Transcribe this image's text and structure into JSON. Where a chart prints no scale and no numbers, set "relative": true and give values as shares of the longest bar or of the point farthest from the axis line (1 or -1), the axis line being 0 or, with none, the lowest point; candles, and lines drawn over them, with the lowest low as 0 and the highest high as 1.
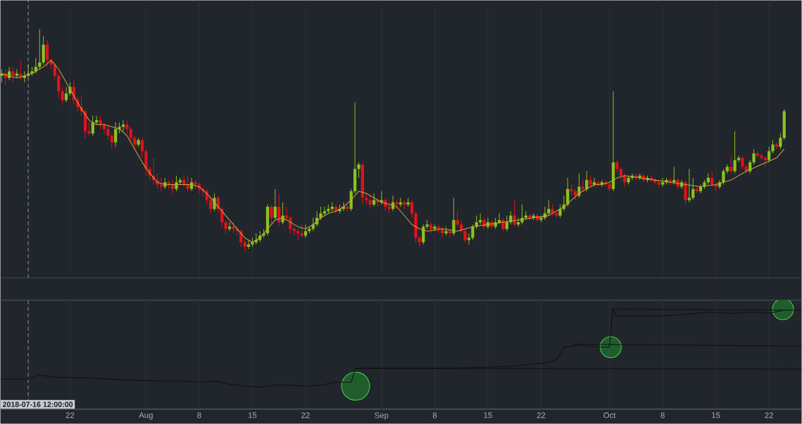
{
  "chart_data": [
    {
      "type": "candlestick",
      "relative": true,
      "grid": "x",
      "tick_labels": false,
      "xlim": [
        "2018-07-12T20:00",
        "2018-10-26T07:00"
      ],
      "xticks": [
        {
          "value": "2018-07-22",
          "label": null
        },
        {
          "value": "2018-08-01",
          "label": null
        },
        {
          "value": "2018-08-08",
          "label": null
        },
        {
          "value": "2018-08-15",
          "label": null
        },
        {
          "value": "2018-08-22",
          "label": null
        },
        {
          "value": "2018-09-01",
          "label": null
        },
        {
          "value": "2018-09-08",
          "label": null
        },
        {
          "value": "2018-09-15",
          "label": null
        },
        {
          "value": "2018-09-22",
          "label": null
        },
        {
          "value": "2018-10-01",
          "label": null
        },
        {
          "value": "2018-10-08",
          "label": null
        },
        {
          "value": "2018-10-15",
          "label": null
        },
        {
          "value": "2018-10-22",
          "label": null
        }
      ],
      "ref_lines": [
        {
          "axis": "x",
          "value": "2018-07-16T12:00",
          "line_style": "dashed",
          "color": "#8a8e95"
        }
      ],
      "x": [
        "2018-07-13T00:00",
        "2018-07-13T12:00",
        "2018-07-14T00:00",
        "2018-07-14T12:00",
        "2018-07-15T00:00",
        "2018-07-15T12:00",
        "2018-07-16T00:00",
        "2018-07-16T12:00",
        "2018-07-17T00:00",
        "2018-07-17T12:00",
        "2018-07-18T00:00",
        "2018-07-18T12:00",
        "2018-07-19T00:00",
        "2018-07-19T12:00",
        "2018-07-20T00:00",
        "2018-07-20T12:00",
        "2018-07-21T00:00",
        "2018-07-21T12:00",
        "2018-07-22T00:00",
        "2018-07-22T12:00",
        "2018-07-23T00:00",
        "2018-07-23T12:00",
        "2018-07-24T00:00",
        "2018-07-24T12:00",
        "2018-07-25T00:00",
        "2018-07-25T12:00",
        "2018-07-26T00:00",
        "2018-07-26T12:00",
        "2018-07-27T00:00",
        "2018-07-27T12:00",
        "2018-07-28T00:00",
        "2018-07-28T12:00",
        "2018-07-29T00:00",
        "2018-07-29T12:00",
        "2018-07-30T00:00",
        "2018-07-30T12:00",
        "2018-07-31T00:00",
        "2018-07-31T12:00",
        "2018-08-01T00:00",
        "2018-08-01T12:00",
        "2018-08-02T00:00",
        "2018-08-02T12:00",
        "2018-08-03T00:00",
        "2018-08-03T12:00",
        "2018-08-04T00:00",
        "2018-08-04T12:00",
        "2018-08-05T00:00",
        "2018-08-05T12:00",
        "2018-08-06T00:00",
        "2018-08-06T12:00",
        "2018-08-07T00:00",
        "2018-08-07T12:00",
        "2018-08-08T00:00",
        "2018-08-08T12:00",
        "2018-08-09T00:00",
        "2018-08-09T12:00",
        "2018-08-10T00:00",
        "2018-08-10T12:00",
        "2018-08-11T00:00",
        "2018-08-11T12:00",
        "2018-08-12T00:00",
        "2018-08-12T12:00",
        "2018-08-13T00:00",
        "2018-08-13T12:00",
        "2018-08-14T00:00",
        "2018-08-14T12:00",
        "2018-08-15T00:00",
        "2018-08-15T12:00",
        "2018-08-16T00:00",
        "2018-08-16T12:00",
        "2018-08-17T00:00",
        "2018-08-17T12:00",
        "2018-08-18T00:00",
        "2018-08-18T12:00",
        "2018-08-19T00:00",
        "2018-08-19T12:00",
        "2018-08-20T00:00",
        "2018-08-20T12:00",
        "2018-08-21T00:00",
        "2018-08-21T12:00",
        "2018-08-22T00:00",
        "2018-08-22T12:00",
        "2018-08-23T00:00",
        "2018-08-23T12:00",
        "2018-08-24T00:00",
        "2018-08-24T12:00",
        "2018-08-25T00:00",
        "2018-08-25T12:00",
        "2018-08-26T00:00",
        "2018-08-26T12:00",
        "2018-08-27T00:00",
        "2018-08-27T12:00",
        "2018-08-28T00:00",
        "2018-08-28T12:00",
        "2018-08-29T00:00",
        "2018-08-29T12:00",
        "2018-08-30T00:00",
        "2018-08-30T12:00",
        "2018-08-31T00:00",
        "2018-08-31T12:00",
        "2018-09-01T00:00",
        "2018-09-01T12:00",
        "2018-09-02T00:00",
        "2018-09-02T12:00",
        "2018-09-03T00:00",
        "2018-09-03T12:00",
        "2018-09-04T00:00",
        "2018-09-04T12:00",
        "2018-09-05T00:00",
        "2018-09-05T12:00",
        "2018-09-06T00:00",
        "2018-09-06T12:00",
        "2018-09-07T00:00",
        "2018-09-07T12:00",
        "2018-09-08T00:00",
        "2018-09-08T12:00",
        "2018-09-09T00:00",
        "2018-09-09T12:00",
        "2018-09-10T00:00",
        "2018-09-10T12:00",
        "2018-09-11T00:00",
        "2018-09-11T12:00",
        "2018-09-12T00:00",
        "2018-09-12T12:00",
        "2018-09-13T00:00",
        "2018-09-13T12:00",
        "2018-09-14T00:00",
        "2018-09-14T12:00",
        "2018-09-15T00:00",
        "2018-09-15T12:00",
        "2018-09-16T00:00",
        "2018-09-16T12:00",
        "2018-09-17T00:00",
        "2018-09-17T12:00",
        "2018-09-18T00:00",
        "2018-09-18T12:00",
        "2018-09-19T00:00",
        "2018-09-19T12:00",
        "2018-09-20T00:00",
        "2018-09-20T12:00",
        "2018-09-21T00:00",
        "2018-09-21T12:00",
        "2018-09-22T00:00",
        "2018-09-22T12:00",
        "2018-09-23T00:00",
        "2018-09-23T12:00",
        "2018-09-24T00:00",
        "2018-09-24T12:00",
        "2018-09-25T00:00",
        "2018-09-25T12:00",
        "2018-09-26T00:00",
        "2018-09-26T12:00",
        "2018-09-27T00:00",
        "2018-09-27T12:00",
        "2018-09-28T00:00",
        "2018-09-28T12:00",
        "2018-09-29T00:00",
        "2018-09-29T12:00",
        "2018-09-30T00:00",
        "2018-09-30T12:00",
        "2018-10-01T00:00",
        "2018-10-01T12:00",
        "2018-10-02T00:00",
        "2018-10-02T12:00",
        "2018-10-03T00:00",
        "2018-10-03T12:00",
        "2018-10-04T00:00",
        "2018-10-04T12:00",
        "2018-10-05T00:00",
        "2018-10-05T12:00",
        "2018-10-06T00:00",
        "2018-10-06T12:00",
        "2018-10-07T00:00",
        "2018-10-07T12:00",
        "2018-10-08T00:00",
        "2018-10-08T12:00",
        "2018-10-09T00:00",
        "2018-10-09T12:00",
        "2018-10-10T00:00",
        "2018-10-10T12:00",
        "2018-10-11T00:00",
        "2018-10-11T12:00",
        "2018-10-12T00:00",
        "2018-10-12T12:00",
        "2018-10-13T00:00",
        "2018-10-13T12:00",
        "2018-10-14T00:00",
        "2018-10-14T12:00",
        "2018-10-15T00:00",
        "2018-10-15T12:00",
        "2018-10-16T00:00",
        "2018-10-16T12:00",
        "2018-10-17T00:00",
        "2018-10-17T12:00",
        "2018-10-18T00:00",
        "2018-10-18T12:00",
        "2018-10-19T00:00",
        "2018-10-19T12:00",
        "2018-10-20T00:00",
        "2018-10-20T12:00",
        "2018-10-21T00:00",
        "2018-10-21T12:00",
        "2018-10-22T00:00",
        "2018-10-22T12:00",
        "2018-10-23T00:00",
        "2018-10-23T12:00",
        "2018-10-24T00:00"
      ],
      "ohlc": [
        [
          0.79,
          0.82,
          0.76,
          0.8
        ],
        [
          0.8,
          0.82,
          0.75,
          0.78
        ],
        [
          0.78,
          0.83,
          0.77,
          0.81
        ],
        [
          0.81,
          0.83,
          0.76,
          0.79
        ],
        [
          0.79,
          0.82,
          0.78,
          0.8
        ],
        [
          0.8,
          0.86,
          0.77,
          0.78
        ],
        [
          0.78,
          0.81,
          0.76,
          0.79
        ],
        [
          0.79,
          0.84,
          0.78,
          0.8
        ],
        [
          0.8,
          0.83,
          0.79,
          0.81
        ],
        [
          0.81,
          0.87,
          0.8,
          0.83
        ],
        [
          0.83,
          1.0,
          0.82,
          0.85
        ],
        [
          0.85,
          0.97,
          0.84,
          0.93
        ],
        [
          0.93,
          0.95,
          0.83,
          0.86
        ],
        [
          0.86,
          0.87,
          0.82,
          0.84
        ],
        [
          0.84,
          0.85,
          0.77,
          0.79
        ],
        [
          0.79,
          0.8,
          0.69,
          0.72
        ],
        [
          0.72,
          0.74,
          0.66,
          0.68
        ],
        [
          0.68,
          0.74,
          0.67,
          0.71
        ],
        [
          0.71,
          0.76,
          0.7,
          0.74
        ],
        [
          0.74,
          0.77,
          0.66,
          0.68
        ],
        [
          0.68,
          0.7,
          0.63,
          0.65
        ],
        [
          0.65,
          0.7,
          0.61,
          0.63
        ],
        [
          0.63,
          0.64,
          0.51,
          0.54
        ],
        [
          0.54,
          0.58,
          0.52,
          0.53
        ],
        [
          0.53,
          0.61,
          0.52,
          0.58
        ],
        [
          0.58,
          0.61,
          0.57,
          0.59
        ],
        [
          0.59,
          0.61,
          0.55,
          0.57
        ],
        [
          0.57,
          0.58,
          0.53,
          0.55
        ],
        [
          0.55,
          0.57,
          0.5,
          0.52
        ],
        [
          0.52,
          0.53,
          0.46,
          0.49
        ],
        [
          0.49,
          0.58,
          0.47,
          0.55
        ],
        [
          0.55,
          0.58,
          0.53,
          0.56
        ],
        [
          0.56,
          0.59,
          0.54,
          0.57
        ],
        [
          0.57,
          0.59,
          0.53,
          0.55
        ],
        [
          0.55,
          0.56,
          0.49,
          0.51
        ],
        [
          0.51,
          0.52,
          0.46,
          0.48
        ],
        [
          0.48,
          0.51,
          0.47,
          0.5
        ],
        [
          0.5,
          0.51,
          0.42,
          0.45
        ],
        [
          0.45,
          0.46,
          0.34,
          0.37
        ],
        [
          0.37,
          0.38,
          0.32,
          0.34
        ],
        [
          0.34,
          0.42,
          0.3,
          0.32
        ],
        [
          0.32,
          0.35,
          0.28,
          0.3
        ],
        [
          0.3,
          0.33,
          0.27,
          0.29
        ],
        [
          0.29,
          0.33,
          0.28,
          0.31
        ],
        [
          0.31,
          0.32,
          0.28,
          0.3
        ],
        [
          0.3,
          0.32,
          0.26,
          0.28
        ],
        [
          0.28,
          0.34,
          0.27,
          0.31
        ],
        [
          0.31,
          0.33,
          0.3,
          0.32
        ],
        [
          0.32,
          0.34,
          0.29,
          0.3
        ],
        [
          0.3,
          0.34,
          0.27,
          0.28
        ],
        [
          0.28,
          0.33,
          0.27,
          0.31
        ],
        [
          0.31,
          0.32,
          0.28,
          0.3
        ],
        [
          0.3,
          0.31,
          0.26,
          0.28
        ],
        [
          0.28,
          0.29,
          0.25,
          0.27
        ],
        [
          0.27,
          0.28,
          0.21,
          0.23
        ],
        [
          0.23,
          0.25,
          0.17,
          0.19
        ],
        [
          0.19,
          0.26,
          0.18,
          0.24
        ],
        [
          0.24,
          0.25,
          0.17,
          0.19
        ],
        [
          0.19,
          0.2,
          0.11,
          0.13
        ],
        [
          0.13,
          0.14,
          0.08,
          0.1
        ],
        [
          0.1,
          0.13,
          0.09,
          0.11
        ],
        [
          0.11,
          0.13,
          0.08,
          0.1
        ],
        [
          0.1,
          0.11,
          0.07,
          0.09
        ],
        [
          0.09,
          0.1,
          0.02,
          0.04
        ],
        [
          0.04,
          0.05,
          0.0,
          0.02
        ],
        [
          0.02,
          0.05,
          0.01,
          0.03
        ],
        [
          0.03,
          0.06,
          0.02,
          0.04
        ],
        [
          0.04,
          0.08,
          0.03,
          0.05
        ],
        [
          0.05,
          0.09,
          0.04,
          0.07
        ],
        [
          0.07,
          0.1,
          0.06,
          0.08
        ],
        [
          0.08,
          0.21,
          0.07,
          0.2
        ],
        [
          0.2,
          0.21,
          0.12,
          0.15
        ],
        [
          0.15,
          0.28,
          0.14,
          0.2
        ],
        [
          0.2,
          0.26,
          0.11,
          0.13
        ],
        [
          0.13,
          0.22,
          0.12,
          0.16
        ],
        [
          0.16,
          0.2,
          0.14,
          0.15
        ],
        [
          0.15,
          0.16,
          0.08,
          0.1
        ],
        [
          0.1,
          0.11,
          0.07,
          0.09
        ],
        [
          0.09,
          0.1,
          0.05,
          0.08
        ],
        [
          0.08,
          0.12,
          0.06,
          0.07
        ],
        [
          0.07,
          0.12,
          0.06,
          0.09
        ],
        [
          0.09,
          0.11,
          0.08,
          0.1
        ],
        [
          0.1,
          0.15,
          0.09,
          0.12
        ],
        [
          0.12,
          0.18,
          0.11,
          0.15
        ],
        [
          0.15,
          0.2,
          0.14,
          0.17
        ],
        [
          0.17,
          0.2,
          0.16,
          0.18
        ],
        [
          0.18,
          0.21,
          0.17,
          0.19
        ],
        [
          0.19,
          0.22,
          0.18,
          0.2
        ],
        [
          0.2,
          0.21,
          0.17,
          0.18
        ],
        [
          0.18,
          0.21,
          0.17,
          0.19
        ],
        [
          0.19,
          0.22,
          0.18,
          0.2
        ],
        [
          0.2,
          0.21,
          0.18,
          0.19
        ],
        [
          0.19,
          0.28,
          0.18,
          0.27
        ],
        [
          0.27,
          0.67,
          0.26,
          0.37
        ],
        [
          0.37,
          0.4,
          0.33,
          0.39
        ],
        [
          0.39,
          0.4,
          0.21,
          0.24
        ],
        [
          0.24,
          0.26,
          0.21,
          0.23
        ],
        [
          0.23,
          0.25,
          0.19,
          0.21
        ],
        [
          0.21,
          0.26,
          0.2,
          0.23
        ],
        [
          0.23,
          0.24,
          0.2,
          0.22
        ],
        [
          0.22,
          0.27,
          0.21,
          0.23
        ],
        [
          0.23,
          0.24,
          0.18,
          0.2
        ],
        [
          0.2,
          0.22,
          0.17,
          0.19
        ],
        [
          0.19,
          0.25,
          0.18,
          0.22
        ],
        [
          0.22,
          0.23,
          0.19,
          0.21
        ],
        [
          0.21,
          0.24,
          0.2,
          0.22
        ],
        [
          0.22,
          0.23,
          0.19,
          0.21
        ],
        [
          0.21,
          0.24,
          0.2,
          0.22
        ],
        [
          0.22,
          0.23,
          0.15,
          0.17
        ],
        [
          0.17,
          0.18,
          0.04,
          0.06
        ],
        [
          0.06,
          0.07,
          0.02,
          0.04
        ],
        [
          0.04,
          0.12,
          0.03,
          0.11
        ],
        [
          0.11,
          0.14,
          0.1,
          0.12
        ],
        [
          0.12,
          0.13,
          0.08,
          0.1
        ],
        [
          0.1,
          0.12,
          0.09,
          0.11
        ],
        [
          0.11,
          0.12,
          0.08,
          0.1
        ],
        [
          0.1,
          0.11,
          0.06,
          0.08
        ],
        [
          0.08,
          0.11,
          0.07,
          0.09
        ],
        [
          0.09,
          0.1,
          0.06,
          0.08
        ],
        [
          0.08,
          0.24,
          0.07,
          0.14
        ],
        [
          0.14,
          0.18,
          0.11,
          0.12
        ],
        [
          0.12,
          0.14,
          0.08,
          0.09
        ],
        [
          0.09,
          0.1,
          0.04,
          0.05
        ],
        [
          0.05,
          0.08,
          0.03,
          0.06
        ],
        [
          0.06,
          0.12,
          0.05,
          0.11
        ],
        [
          0.11,
          0.16,
          0.1,
          0.13
        ],
        [
          0.13,
          0.17,
          0.12,
          0.14
        ],
        [
          0.14,
          0.15,
          0.1,
          0.11
        ],
        [
          0.11,
          0.15,
          0.1,
          0.13
        ],
        [
          0.13,
          0.14,
          0.1,
          0.11
        ],
        [
          0.11,
          0.15,
          0.1,
          0.13
        ],
        [
          0.13,
          0.17,
          0.12,
          0.14
        ],
        [
          0.14,
          0.15,
          0.09,
          0.1
        ],
        [
          0.1,
          0.16,
          0.09,
          0.13
        ],
        [
          0.13,
          0.18,
          0.12,
          0.16
        ],
        [
          0.16,
          0.23,
          0.11,
          0.12
        ],
        [
          0.12,
          0.15,
          0.11,
          0.13
        ],
        [
          0.13,
          0.21,
          0.12,
          0.15
        ],
        [
          0.15,
          0.18,
          0.14,
          0.16
        ],
        [
          0.16,
          0.17,
          0.14,
          0.15
        ],
        [
          0.15,
          0.17,
          0.14,
          0.16
        ],
        [
          0.16,
          0.17,
          0.13,
          0.14
        ],
        [
          0.14,
          0.16,
          0.13,
          0.15
        ],
        [
          0.15,
          0.2,
          0.14,
          0.17
        ],
        [
          0.17,
          0.23,
          0.16,
          0.19
        ],
        [
          0.19,
          0.21,
          0.16,
          0.17
        ],
        [
          0.17,
          0.18,
          0.15,
          0.16
        ],
        [
          0.16,
          0.21,
          0.15,
          0.19
        ],
        [
          0.19,
          0.25,
          0.18,
          0.21
        ],
        [
          0.21,
          0.33,
          0.2,
          0.28
        ],
        [
          0.28,
          0.3,
          0.25,
          0.27
        ],
        [
          0.27,
          0.28,
          0.23,
          0.25
        ],
        [
          0.25,
          0.35,
          0.24,
          0.29
        ],
        [
          0.29,
          0.32,
          0.27,
          0.28
        ],
        [
          0.28,
          0.36,
          0.27,
          0.32
        ],
        [
          0.32,
          0.34,
          0.29,
          0.3
        ],
        [
          0.3,
          0.33,
          0.29,
          0.31
        ],
        [
          0.31,
          0.32,
          0.29,
          0.3
        ],
        [
          0.3,
          0.32,
          0.29,
          0.31
        ],
        [
          0.31,
          0.32,
          0.29,
          0.3
        ],
        [
          0.3,
          0.31,
          0.27,
          0.28
        ],
        [
          0.28,
          0.72,
          0.27,
          0.4
        ],
        [
          0.4,
          0.41,
          0.35,
          0.37
        ],
        [
          0.37,
          0.38,
          0.32,
          0.34
        ],
        [
          0.34,
          0.35,
          0.29,
          0.31
        ],
        [
          0.31,
          0.34,
          0.3,
          0.33
        ],
        [
          0.33,
          0.35,
          0.32,
          0.34
        ],
        [
          0.34,
          0.35,
          0.32,
          0.33
        ],
        [
          0.33,
          0.35,
          0.32,
          0.34
        ],
        [
          0.34,
          0.35,
          0.31,
          0.32
        ],
        [
          0.32,
          0.34,
          0.31,
          0.33
        ],
        [
          0.33,
          0.34,
          0.31,
          0.32
        ],
        [
          0.32,
          0.33,
          0.3,
          0.31
        ],
        [
          0.31,
          0.32,
          0.29,
          0.3
        ],
        [
          0.3,
          0.33,
          0.29,
          0.31
        ],
        [
          0.31,
          0.33,
          0.3,
          0.32
        ],
        [
          0.32,
          0.33,
          0.3,
          0.31
        ],
        [
          0.31,
          0.38,
          0.3,
          0.32
        ],
        [
          0.32,
          0.33,
          0.28,
          0.29
        ],
        [
          0.29,
          0.32,
          0.28,
          0.31
        ],
        [
          0.31,
          0.32,
          0.21,
          0.23
        ],
        [
          0.23,
          0.37,
          0.22,
          0.24
        ],
        [
          0.24,
          0.33,
          0.23,
          0.28
        ],
        [
          0.28,
          0.29,
          0.26,
          0.27
        ],
        [
          0.27,
          0.3,
          0.26,
          0.29
        ],
        [
          0.29,
          0.32,
          0.28,
          0.31
        ],
        [
          0.31,
          0.35,
          0.3,
          0.33
        ],
        [
          0.33,
          0.36,
          0.29,
          0.3
        ],
        [
          0.3,
          0.31,
          0.27,
          0.29
        ],
        [
          0.29,
          0.32,
          0.28,
          0.31
        ],
        [
          0.31,
          0.37,
          0.3,
          0.36
        ],
        [
          0.36,
          0.39,
          0.35,
          0.38
        ],
        [
          0.38,
          0.43,
          0.35,
          0.36
        ],
        [
          0.36,
          0.54,
          0.35,
          0.41
        ],
        [
          0.41,
          0.43,
          0.4,
          0.42
        ],
        [
          0.42,
          0.43,
          0.37,
          0.38
        ],
        [
          0.38,
          0.39,
          0.35,
          0.36
        ],
        [
          0.36,
          0.41,
          0.35,
          0.4
        ],
        [
          0.4,
          0.46,
          0.39,
          0.44
        ],
        [
          0.44,
          0.45,
          0.42,
          0.43
        ],
        [
          0.43,
          0.44,
          0.41,
          0.42
        ],
        [
          0.42,
          0.43,
          0.38,
          0.41
        ],
        [
          0.41,
          0.47,
          0.4,
          0.45
        ],
        [
          0.45,
          0.5,
          0.44,
          0.48
        ],
        [
          0.48,
          0.49,
          0.46,
          0.47
        ],
        [
          0.47,
          0.53,
          0.46,
          0.51
        ],
        [
          0.51,
          0.64,
          0.5,
          0.63
        ]
      ],
      "colors": [
        "#8cc21e",
        "#e0121c",
        "#8cc21e",
        "#e0121c",
        "#8cc21e",
        "#e0121c",
        "#8cc21e",
        "#8cc21e",
        "#8cc21e",
        "#8cc21e",
        "#8cc21e",
        "#8cc21e",
        "#e0121c",
        "#e0121c",
        "#e0121c",
        "#e0121c",
        "#e0121c",
        "#8cc21e",
        "#8cc21e",
        "#e0121c",
        "#e0121c",
        "#e0121c",
        "#e0121c",
        "#e0121c",
        "#8cc21e",
        "#8cc21e",
        "#e0121c",
        "#e0121c",
        "#e0121c",
        "#e0121c",
        "#8cc21e",
        "#8cc21e",
        "#8cc21e",
        "#e0121c",
        "#e0121c",
        "#e0121c",
        "#8cc21e",
        "#e0121c",
        "#e0121c",
        "#e0121c",
        "#e0121c",
        "#e0121c",
        "#e0121c",
        "#8cc21e",
        "#e0121c",
        "#e0121c",
        "#8cc21e",
        "#8cc21e",
        "#e0121c",
        "#e0121c",
        "#8cc21e",
        "#e0121c",
        "#e0121c",
        "#e0121c",
        "#e0121c",
        "#e0121c",
        "#8cc21e",
        "#e0121c",
        "#e0121c",
        "#e0121c",
        "#8cc21e",
        "#e0121c",
        "#e0121c",
        "#e0121c",
        "#e0121c",
        "#8cc21e",
        "#8cc21e",
        "#8cc21e",
        "#8cc21e",
        "#8cc21e",
        "#8cc21e",
        "#e0121c",
        "#8cc21e",
        "#e0121c",
        "#8cc21e",
        "#e0121c",
        "#e0121c",
        "#e0121c",
        "#e0121c",
        "#e0121c",
        "#8cc21e",
        "#8cc21e",
        "#8cc21e",
        "#8cc21e",
        "#8cc21e",
        "#8cc21e",
        "#8cc21e",
        "#8cc21e",
        "#e0121c",
        "#8cc21e",
        "#8cc21e",
        "#e0121c",
        "#8cc21e",
        "#8cc21e",
        "#8cc21e",
        "#e0121c",
        "#e0121c",
        "#e0121c",
        "#8cc21e",
        "#e0121c",
        "#8cc21e",
        "#e0121c",
        "#e0121c",
        "#8cc21e",
        "#e0121c",
        "#8cc21e",
        "#e0121c",
        "#8cc21e",
        "#e0121c",
        "#e0121c",
        "#e0121c",
        "#8cc21e",
        "#8cc21e",
        "#e0121c",
        "#8cc21e",
        "#e0121c",
        "#e0121c",
        "#8cc21e",
        "#e0121c",
        "#8cc21e",
        "#e0121c",
        "#e0121c",
        "#e0121c",
        "#8cc21e",
        "#8cc21e",
        "#8cc21e",
        "#8cc21e",
        "#e0121c",
        "#8cc21e",
        "#e0121c",
        "#8cc21e",
        "#8cc21e",
        "#e0121c",
        "#8cc21e",
        "#8cc21e",
        "#e0121c",
        "#8cc21e",
        "#8cc21e",
        "#8cc21e",
        "#e0121c",
        "#8cc21e",
        "#e0121c",
        "#8cc21e",
        "#8cc21e",
        "#8cc21e",
        "#e0121c",
        "#e0121c",
        "#8cc21e",
        "#8cc21e",
        "#8cc21e",
        "#e0121c",
        "#e0121c",
        "#8cc21e",
        "#e0121c",
        "#8cc21e",
        "#e0121c",
        "#8cc21e",
        "#e0121c",
        "#8cc21e",
        "#e0121c",
        "#e0121c",
        "#8cc21e",
        "#e0121c",
        "#e0121c",
        "#e0121c",
        "#8cc21e",
        "#8cc21e",
        "#e0121c",
        "#8cc21e",
        "#e0121c",
        "#8cc21e",
        "#e0121c",
        "#e0121c",
        "#e0121c",
        "#8cc21e",
        "#8cc21e",
        "#e0121c",
        "#8cc21e",
        "#e0121c",
        "#8cc21e",
        "#e0121c",
        "#8cc21e",
        "#8cc21e",
        "#e0121c",
        "#8cc21e",
        "#8cc21e",
        "#8cc21e",
        "#e0121c",
        "#e0121c",
        "#8cc21e",
        "#8cc21e",
        "#8cc21e",
        "#e0121c",
        "#8cc21e",
        "#8cc21e",
        "#e0121c",
        "#e0121c",
        "#8cc21e",
        "#8cc21e",
        "#e0121c",
        "#e0121c",
        "#e0121c",
        "#8cc21e",
        "#8cc21e",
        "#e0121c",
        "#8cc21e",
        "#8cc21e"
      ],
      "series": [
        {
          "type": "line",
          "color": "#c9a23b",
          "x": [
            "2018-07-13",
            "2018-07-15",
            "2018-07-17",
            "2018-07-18T12:00",
            "2018-07-19T12:00",
            "2018-07-20T12:00",
            "2018-07-21T12:00",
            "2018-07-22T12:00",
            "2018-07-23T12:00",
            "2018-07-24T12:00",
            "2018-07-25T12:00",
            "2018-07-26T12:00",
            "2018-07-27T12:00",
            "2018-07-28T12:00",
            "2018-07-29T12:00",
            "2018-07-30T12:00",
            "2018-07-31T12:00",
            "2018-08-01T12:00",
            "2018-08-02T12:00",
            "2018-08-03T12:00",
            "2018-08-05",
            "2018-08-07",
            "2018-08-08",
            "2018-08-09",
            "2018-08-10",
            "2018-08-11",
            "2018-08-12",
            "2018-08-13",
            "2018-08-14",
            "2018-08-15",
            "2018-08-16",
            "2018-08-17",
            "2018-08-18",
            "2018-08-19",
            "2018-08-20",
            "2018-08-21",
            "2018-08-22",
            "2018-08-23",
            "2018-08-24",
            "2018-08-25",
            "2018-08-26",
            "2018-08-27",
            "2018-08-28",
            "2018-08-29",
            "2018-08-30",
            "2018-08-31",
            "2018-09-01",
            "2018-09-02",
            "2018-09-03",
            "2018-09-04",
            "2018-09-05",
            "2018-09-06",
            "2018-09-07",
            "2018-09-09",
            "2018-09-11",
            "2018-09-13",
            "2018-09-15",
            "2018-09-17",
            "2018-09-19",
            "2018-09-21",
            "2018-09-23",
            "2018-09-24",
            "2018-09-25",
            "2018-09-26",
            "2018-09-27",
            "2018-09-28",
            "2018-09-29",
            "2018-09-30",
            "2018-10-01",
            "2018-10-02",
            "2018-10-03",
            "2018-10-05",
            "2018-10-07",
            "2018-10-09",
            "2018-10-11",
            "2018-10-13",
            "2018-10-15",
            "2018-10-17",
            "2018-10-19",
            "2018-10-21",
            "2018-10-23",
            "2018-10-24"
          ],
          "values": [
            0.8,
            0.78,
            0.8,
            0.83,
            0.86,
            0.82,
            0.76,
            0.7,
            0.64,
            0.59,
            0.57,
            0.57,
            0.56,
            0.55,
            0.52,
            0.46,
            0.4,
            0.35,
            0.31,
            0.3,
            0.3,
            0.3,
            0.29,
            0.26,
            0.22,
            0.18,
            0.14,
            0.1,
            0.06,
            0.04,
            0.06,
            0.1,
            0.14,
            0.15,
            0.13,
            0.11,
            0.1,
            0.12,
            0.15,
            0.17,
            0.18,
            0.2,
            0.23,
            0.27,
            0.26,
            0.24,
            0.22,
            0.21,
            0.2,
            0.16,
            0.12,
            0.1,
            0.09,
            0.1,
            0.09,
            0.11,
            0.12,
            0.13,
            0.14,
            0.15,
            0.16,
            0.18,
            0.2,
            0.23,
            0.26,
            0.28,
            0.3,
            0.3,
            0.31,
            0.33,
            0.34,
            0.33,
            0.32,
            0.31,
            0.3,
            0.29,
            0.3,
            0.32,
            0.36,
            0.39,
            0.42,
            0.46
          ]
        }
      ]
    },
    {
      "type": "line",
      "relative": true,
      "grid": "x",
      "tick_labels": "x",
      "xlim": [
        "2018-07-12T20:00",
        "2018-10-26T07:00"
      ],
      "xticks": [
        {
          "value": "2018-07-22",
          "label": "22"
        },
        {
          "value": "2018-08-01",
          "label": "Aug"
        },
        {
          "value": "2018-08-08",
          "label": "8"
        },
        {
          "value": "2018-08-15",
          "label": "15"
        },
        {
          "value": "2018-08-22",
          "label": "22"
        },
        {
          "value": "2018-09-01",
          "label": "Sep"
        },
        {
          "value": "2018-09-08",
          "label": "8"
        },
        {
          "value": "2018-09-15",
          "label": "15"
        },
        {
          "value": "2018-09-22",
          "label": "22"
        },
        {
          "value": "2018-10-01",
          "label": "Oct"
        },
        {
          "value": "2018-10-08",
          "label": "8"
        },
        {
          "value": "2018-10-15",
          "label": "15"
        },
        {
          "value": "2018-10-22",
          "label": "22"
        }
      ],
      "ref_lines": [
        {
          "axis": "x",
          "value": "2018-07-16T12:00",
          "label": "2018-07-16 12:00:00",
          "line_style": "dashed",
          "color": "#8a8e95"
        }
      ],
      "series": [
        {
          "color": "#111111",
          "x": [
            "2018-07-12T20:00",
            "2018-07-16T12:00",
            "2018-07-18",
            "2018-07-20",
            "2018-07-25",
            "2018-07-30",
            "2018-08-03",
            "2018-08-06",
            "2018-08-08",
            "2018-08-10",
            "2018-08-12",
            "2018-08-14",
            "2018-08-16",
            "2018-08-18",
            "2018-08-20",
            "2018-08-22",
            "2018-08-24",
            "2018-08-26",
            "2018-08-28",
            "2018-08-28T14:00",
            "2018-09-01",
            "2018-09-05",
            "2018-09-10",
            "2018-09-15",
            "2018-09-18",
            "2018-09-21",
            "2018-09-23",
            "2018-09-24",
            "2018-09-25",
            "2018-09-27",
            "2018-09-30",
            "2018-10-01",
            "2018-10-01T10:00",
            "2018-10-02",
            "2018-10-06",
            "2018-10-10",
            "2018-10-14",
            "2018-10-17",
            "2018-10-20",
            "2018-10-22",
            "2018-10-24"
          ],
          "values": [
            0.3,
            0.3,
            0.34,
            0.32,
            0.31,
            0.29,
            0.28,
            0.28,
            0.27,
            0.28,
            0.25,
            0.23,
            0.22,
            0.24,
            0.24,
            0.23,
            0.24,
            0.27,
            0.27,
            0.41,
            0.41,
            0.41,
            0.41,
            0.42,
            0.43,
            0.45,
            0.47,
            0.49,
            0.62,
            0.64,
            0.62,
            0.62,
            1.0,
            0.93,
            0.93,
            0.94,
            0.97,
            0.96,
            0.97,
            0.96,
            0.99
          ]
        },
        {
          "color": "#111111",
          "x": [
            "2018-08-28T14:00",
            "2018-10-26T07:00"
          ],
          "values": [
            0.41,
            0.4
          ]
        },
        {
          "color": "#111111",
          "x": [
            "2018-09-26",
            "2018-10-26T07:00"
          ],
          "values": [
            0.65,
            0.63
          ]
        },
        {
          "color": "#111111",
          "x": [
            "2018-10-01T10:00",
            "2018-10-26T07:00"
          ],
          "values": [
            1.0,
            0.99
          ]
        },
        {
          "type": "bubble",
          "color": "#1f5e2c",
          "x": [
            "2018-08-28T14:00",
            "2018-10-01T04:00",
            "2018-10-23T20:00"
          ],
          "values": [
            0.23,
            0.62,
            1.0
          ],
          "sizes": [
            1,
            0.56,
            0.56
          ]
        }
      ]
    }
  ]
}
